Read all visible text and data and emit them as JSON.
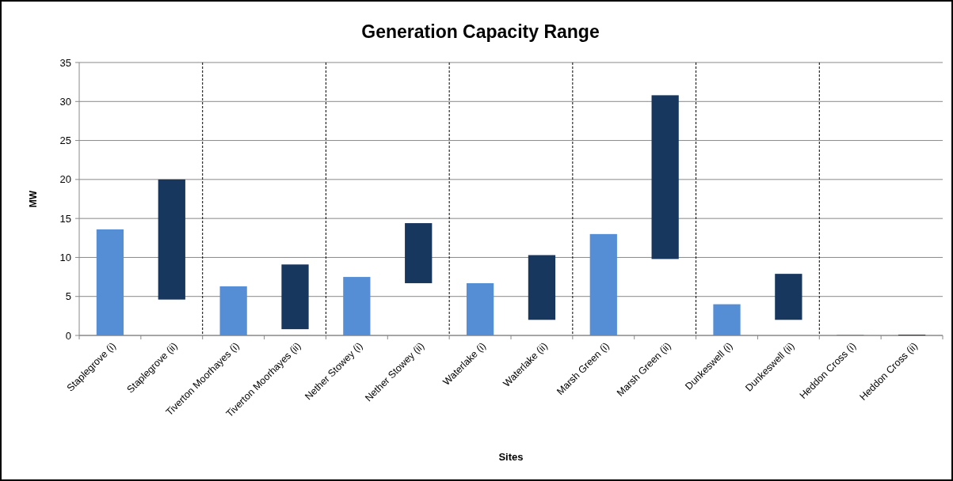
{
  "chart_data": {
    "type": "bar",
    "title": "Generation Capacity Range",
    "xlabel": "Sites",
    "ylabel": "MW",
    "categories": [
      "Staplegrove (i)",
      "Staplegrove (ii)",
      "Tiverton Moorhayes (i)",
      "Tiverton Moorhayes (ii)",
      "Nether Stowey (i)",
      "Nether Stowey (ii)",
      "Waterlake (i)",
      "Waterlake (ii)",
      "Marsh Green (i)",
      "Marsh Green (ii)",
      "Dunkeswell (i)",
      "Dunkeswell (ii)",
      "Heddon Cross (i)",
      "Heddon Cross (ii)"
    ],
    "values": [
      13.6,
      15.4,
      6.3,
      8.3,
      7.5,
      7.7,
      6.7,
      8.3,
      13.0,
      21.0,
      4.0,
      5.9,
      0.1,
      0.1
    ],
    "base": [
      0,
      4.6,
      0,
      0.8,
      0,
      6.7,
      0,
      2.0,
      0,
      9.8,
      0,
      2.0,
      0,
      0
    ],
    "colors": [
      "#558ed5",
      "#17375e",
      "#558ed5",
      "#17375e",
      "#558ed5",
      "#17375e",
      "#558ed5",
      "#17375e",
      "#558ed5",
      "#17375e",
      "#558ed5",
      "#17375e",
      "#558ed5",
      "#17375e"
    ],
    "ylim": [
      0,
      35
    ],
    "yticks": [
      0,
      5,
      10,
      15,
      20,
      25,
      30,
      35
    ],
    "grid": "y"
  }
}
